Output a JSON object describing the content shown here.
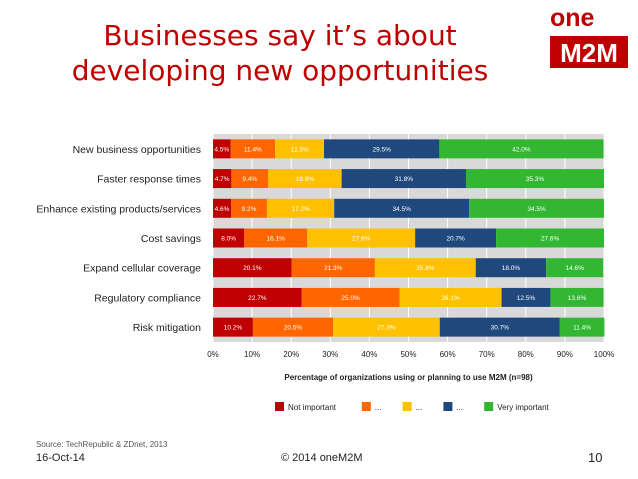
{
  "slide": {
    "title_line1": "Businesses say it’s about",
    "title_line2": "developing new opportunities",
    "logo_text_top": "one",
    "logo_text_bottom": "M2M",
    "source": "Source: TechRepublic & ZDnet, 2013",
    "date": "16-Oct-14",
    "copyright": "© 2014 oneM2M",
    "page_number": "10"
  },
  "colors": {
    "title": "#c00000",
    "not_important": "#c00000",
    "level2": "#ff6600",
    "level3": "#ffc000",
    "level4": "#1f497d",
    "very_important": "#33b733",
    "plot_bg": "#d9d9d9"
  },
  "chart_data": {
    "type": "bar",
    "orientation": "horizontal",
    "stacked": "100%",
    "xlabel": "Percentage of organizations using or planning to use M2M (n=98)",
    "ylabel": "",
    "xlim": [
      0,
      100
    ],
    "xticks": [
      "0%",
      "10%",
      "20%",
      "30%",
      "40%",
      "50%",
      "60%",
      "70%",
      "80%",
      "90%",
      "100%"
    ],
    "grid": true,
    "legend_position": "bottom",
    "categories": [
      "New business opportunities",
      "Faster response times",
      "Enhance existing products/services",
      "Cost savings",
      "Expand cellular coverage",
      "Regulatory compliance",
      "Risk mitigation"
    ],
    "series": [
      {
        "name": "Not important",
        "color": "#c00000",
        "values": [
          4.5,
          4.7,
          4.6,
          8.0,
          20.1,
          22.7,
          10.2
        ],
        "labels": [
          "4.5%",
          "4.7%",
          "4.6%",
          "8.0%",
          "20.1%",
          "22.7%",
          "10.2%"
        ]
      },
      {
        "name": "...",
        "color": "#ff6600",
        "values": [
          11.4,
          9.4,
          9.2,
          16.1,
          21.3,
          25.0,
          20.5
        ],
        "labels": [
          "11.4%",
          "9.4%",
          "9.2%",
          "16.1%",
          "21.3%",
          "25.0%",
          "20.5%"
        ]
      },
      {
        "name": "...",
        "color": "#ffc000",
        "values": [
          12.5,
          18.8,
          17.2,
          27.6,
          25.8,
          26.1,
          27.3
        ],
        "labels": [
          "12.5%",
          "18.8%",
          "17.2%",
          "27.6%",
          "25.8%",
          "26.1%",
          "27.3%"
        ]
      },
      {
        "name": "...",
        "color": "#1f497d",
        "values": [
          29.5,
          31.8,
          34.5,
          20.7,
          18.0,
          12.5,
          30.7
        ],
        "labels": [
          "29.5%",
          "31.8%",
          "34.5%",
          "20.7%",
          "18.0%",
          "12.5%",
          "30.7%"
        ]
      },
      {
        "name": "Very important",
        "color": "#33b733",
        "values": [
          42.0,
          35.3,
          34.5,
          27.6,
          14.6,
          13.6,
          11.4
        ],
        "labels": [
          "42.0%",
          "35.3%",
          "34.5%",
          "27.6%",
          "14.6%",
          "13.6%",
          "11.4%"
        ]
      }
    ]
  }
}
